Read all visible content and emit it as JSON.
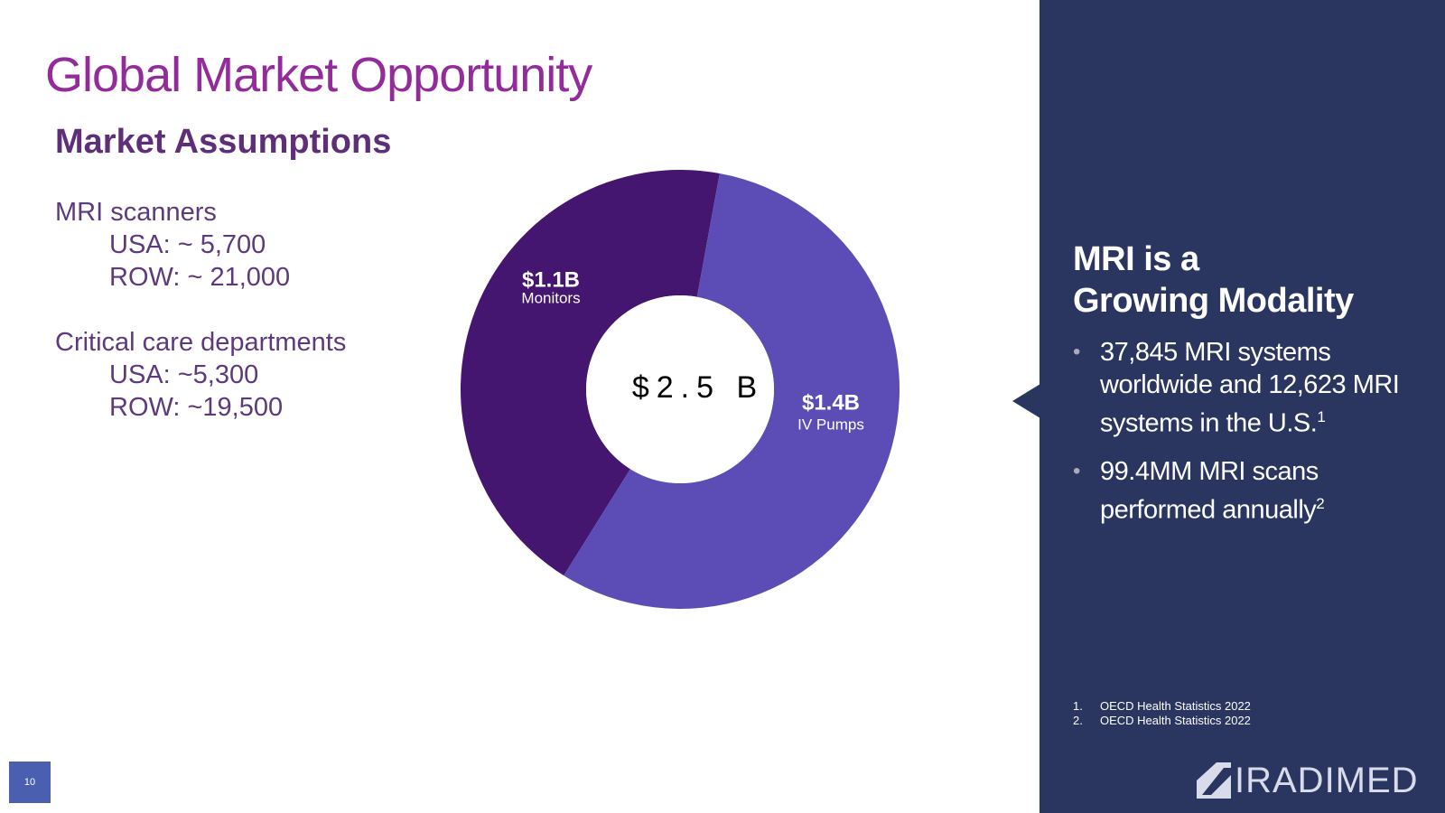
{
  "slide": {
    "title": "Global Market Opportunity",
    "subtitle": "Market Assumptions",
    "assumptions": [
      {
        "heading": "MRI scanners",
        "lines": [
          "USA: ~ 5,700",
          "ROW: ~ 21,000"
        ]
      },
      {
        "heading": "Critical care departments",
        "lines": [
          "USA: ~5,300",
          "ROW: ~19,500"
        ]
      }
    ],
    "panel": {
      "heading": [
        "MRI is a",
        "Growing Modality"
      ],
      "bullets": [
        {
          "text": "37,845 MRI systems worldwide and 12,623 MRI systems in the U.S.",
          "sup": "1"
        },
        {
          "text": "99.4MM MRI scans performed annually",
          "sup": "2"
        }
      ],
      "footnotes": [
        {
          "num": "1.",
          "text": "OECD Health Statistics 2022"
        },
        {
          "num": "2.",
          "text": "OECD Health Statistics 2022"
        }
      ],
      "logo": "IRADIMED"
    },
    "page_number": "10"
  },
  "chart_data": {
    "type": "donut",
    "center_label": "$2.5 B",
    "categories": [
      "Monitors",
      "IV Pumps"
    ],
    "values": [
      1.1,
      1.4
    ],
    "value_labels": [
      "$1.1B",
      "$1.4B"
    ],
    "colors": [
      "#45166f",
      "#5b4db5"
    ]
  }
}
